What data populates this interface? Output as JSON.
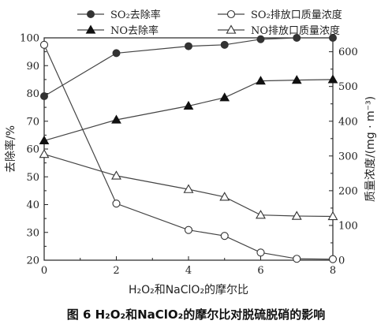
{
  "caption": "图 6  H₂O₂和NaClO₂的摩尔比对脱硫脱硝的影响",
  "chart_data": {
    "type": "line",
    "title": "",
    "xlabel": "H₂O₂和NaClO₂的摩尔比",
    "ylabel_left": "去除率/%",
    "ylabel_right": "质量浓度/(mg · m⁻³)",
    "xlim": [
      0,
      8
    ],
    "ylim_left": [
      20,
      100
    ],
    "ylim_right": [
      0,
      640
    ],
    "x_ticks": [
      "0",
      "2",
      "4",
      "6",
      "8"
    ],
    "y_left_ticks": [
      "20",
      "30",
      "40",
      "50",
      "60",
      "70",
      "80",
      "90",
      "100"
    ],
    "y_right_ticks": [
      "0",
      "100",
      "200",
      "300",
      "400",
      "500",
      "600"
    ],
    "legend_position": "top",
    "grid": false,
    "series": [
      {
        "name": "SO₂去除率",
        "axis": "left",
        "marker": "filled-circle",
        "x": [
          0,
          2,
          4,
          5,
          6,
          7,
          8
        ],
        "values": [
          79,
          94.5,
          97,
          97.5,
          99.5,
          100,
          100
        ]
      },
      {
        "name": "SO₂排放口质量浓度",
        "axis": "right",
        "marker": "open-circle",
        "x": [
          0,
          2,
          4,
          5,
          6,
          7,
          8
        ],
        "values": [
          620,
          163,
          87,
          70,
          22,
          4,
          3
        ]
      },
      {
        "name": "NO去除率",
        "axis": "left",
        "marker": "filled-triangle",
        "x": [
          0,
          2,
          4,
          5,
          6,
          7,
          8
        ],
        "values": [
          63,
          70.5,
          75.5,
          78.5,
          84.5,
          84.8,
          85
        ]
      },
      {
        "name": "NO排放口质量浓度",
        "axis": "right",
        "marker": "open-triangle",
        "x": [
          0,
          2,
          4,
          5,
          6,
          7,
          8
        ],
        "values": [
          305,
          243,
          204,
          182,
          130,
          127,
          126
        ]
      }
    ]
  }
}
